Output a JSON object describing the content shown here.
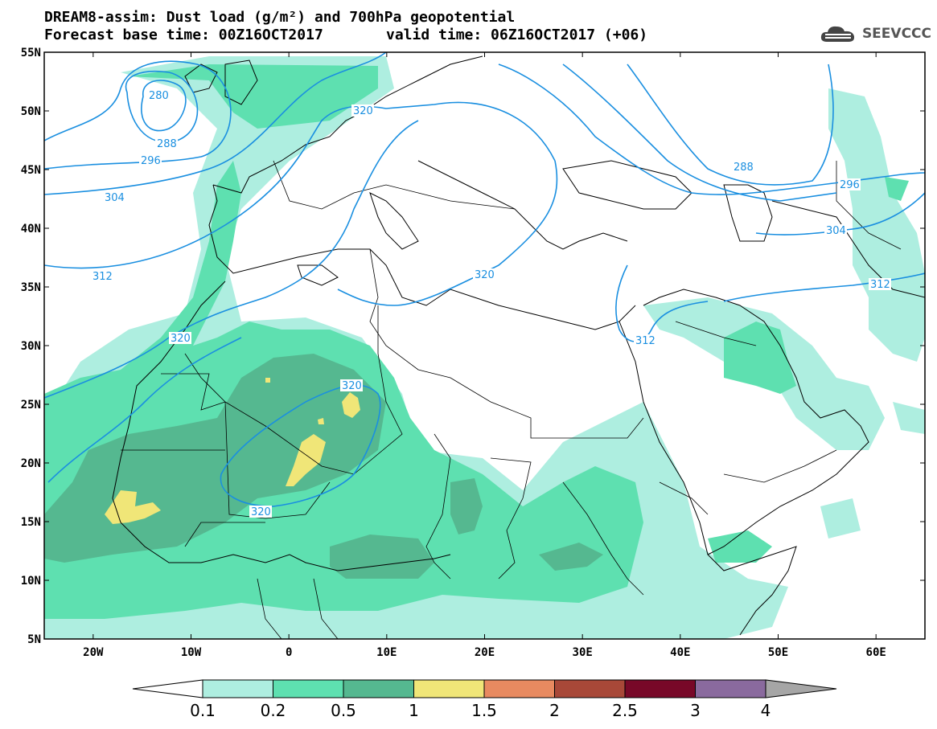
{
  "header": {
    "title_line1": "DREAM8-assim: Dust load (g/m²) and 700hPa geopotential",
    "title_line2": "Forecast base time: 00Z16OCT2017",
    "valid_time": "valid time: 06Z16OCT2017 (+06)"
  },
  "logo": {
    "text": "SEEVCCC",
    "icon": "cloud-icon"
  },
  "map": {
    "lon_range": [
      -25,
      65
    ],
    "lat_range": [
      5,
      55
    ],
    "lat_labels": [
      "55N",
      "50N",
      "45N",
      "40N",
      "35N",
      "30N",
      "25N",
      "20N",
      "15N",
      "10N",
      "5N"
    ],
    "lon_labels": [
      "20W",
      "10W",
      "0",
      "10E",
      "20E",
      "30E",
      "40E",
      "50E",
      "60E"
    ],
    "contour_labels": [
      "280",
      "288",
      "296",
      "304",
      "312",
      "320",
      "320",
      "320",
      "320",
      "288",
      "296",
      "304",
      "312",
      "312"
    ],
    "contour_color": "#1a8fe0"
  },
  "colorbar": {
    "labels": [
      "0.1",
      "0.2",
      "0.5",
      "1",
      "1.5",
      "2",
      "2.5",
      "3",
      "4"
    ],
    "colors": [
      "#aeeee0",
      "#5ee0b0",
      "#55b890",
      "#f0e678",
      "#e88a60",
      "#a84838",
      "#780828",
      "#8a6a9e",
      "#a6a6a6"
    ]
  }
}
